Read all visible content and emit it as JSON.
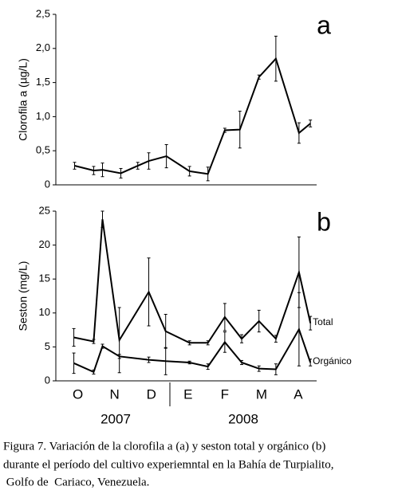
{
  "chart_data": [
    {
      "type": "line",
      "panel_label": "a",
      "ylabel": "Clorofila a (µg/L)",
      "x": [
        -0.09,
        0.43,
        0.67,
        1.17,
        1.63,
        1.93,
        2.41,
        3.04,
        3.54,
        4.0,
        4.41,
        4.93,
        5.39,
        6.02,
        6.33
      ],
      "values": [
        0.28,
        0.21,
        0.22,
        0.17,
        0.28,
        0.35,
        0.42,
        0.2,
        0.16,
        0.8,
        0.81,
        1.58,
        1.85,
        0.76,
        0.9
      ],
      "errors": [
        0.05,
        0.06,
        0.1,
        0.07,
        0.05,
        0.12,
        0.17,
        0.07,
        0.1,
        0.03,
        0.27,
        0.03,
        0.33,
        0.15,
        0.05
      ],
      "color": "#000000",
      "xlim": [
        -0.6,
        6.5
      ],
      "ylim": [
        0,
        2.5
      ],
      "yticks": [
        0,
        {
          "value": 0.5,
          "label": "0,5"
        },
        {
          "value": 1,
          "label": "1,0"
        },
        {
          "value": 1.5,
          "label": "1,5"
        },
        {
          "value": 2,
          "label": "2,0"
        },
        {
          "value": 2.5,
          "label": "2,5"
        }
      ]
    },
    {
      "type": "line",
      "panel_label": "b",
      "ylabel": "Seston (mg/L)",
      "x": [
        -0.11,
        0.43,
        0.67,
        1.13,
        1.93,
        2.39,
        3.04,
        3.54,
        4.0,
        4.46,
        4.93,
        5.39,
        6.02,
        6.33
      ],
      "series": [
        {
          "name": "Total",
          "color": "#000000",
          "values": [
            6.4,
            5.8,
            23.8,
            6.0,
            13.1,
            7.3,
            5.6,
            5.6,
            9.4,
            6.2,
            8.8,
            6.2,
            16.0,
            8.5
          ],
          "errors": [
            1.3,
            0.3,
            1.2,
            4.8,
            5.0,
            2.5,
            0.3,
            0.3,
            2.0,
            0.6,
            1.6,
            0.5,
            5.2,
            1.0
          ]
        },
        {
          "name": "Orgánico",
          "color": "#000000",
          "values": [
            2.6,
            1.3,
            5.1,
            3.6,
            3.1,
            2.9,
            2.7,
            2.1,
            5.7,
            2.7,
            1.8,
            1.7,
            7.6,
            2.7
          ],
          "errors": [
            1.5,
            0.3,
            0.3,
            0.3,
            0.4,
            2.0,
            0.2,
            0.4,
            1.5,
            0.3,
            0.4,
            0.8,
            5.4,
            0.5
          ]
        }
      ],
      "xlim": [
        -0.6,
        6.5
      ],
      "ylim": [
        0,
        25
      ],
      "yticks": [
        0,
        5,
        10,
        15,
        20,
        25
      ],
      "xticks": [
        {
          "value": 0,
          "label": "O"
        },
        {
          "value": 1,
          "label": "N"
        },
        {
          "value": 2,
          "label": "D"
        },
        {
          "value": 3,
          "label": "E"
        },
        {
          "value": 4,
          "label": "F"
        },
        {
          "value": 5,
          "label": "M"
        },
        {
          "value": 6,
          "label": "A"
        }
      ],
      "year_labels": [
        "2007",
        "2008"
      ]
    }
  ],
  "caption": [
    "Figura 7. Variación de la clorofila a (a) y seston total y orgánico (b)",
    "durante el período del cultivo experiemntal en la Bahía de Turpialito,",
    " Golfo de  Cariaco, Venezuela."
  ]
}
